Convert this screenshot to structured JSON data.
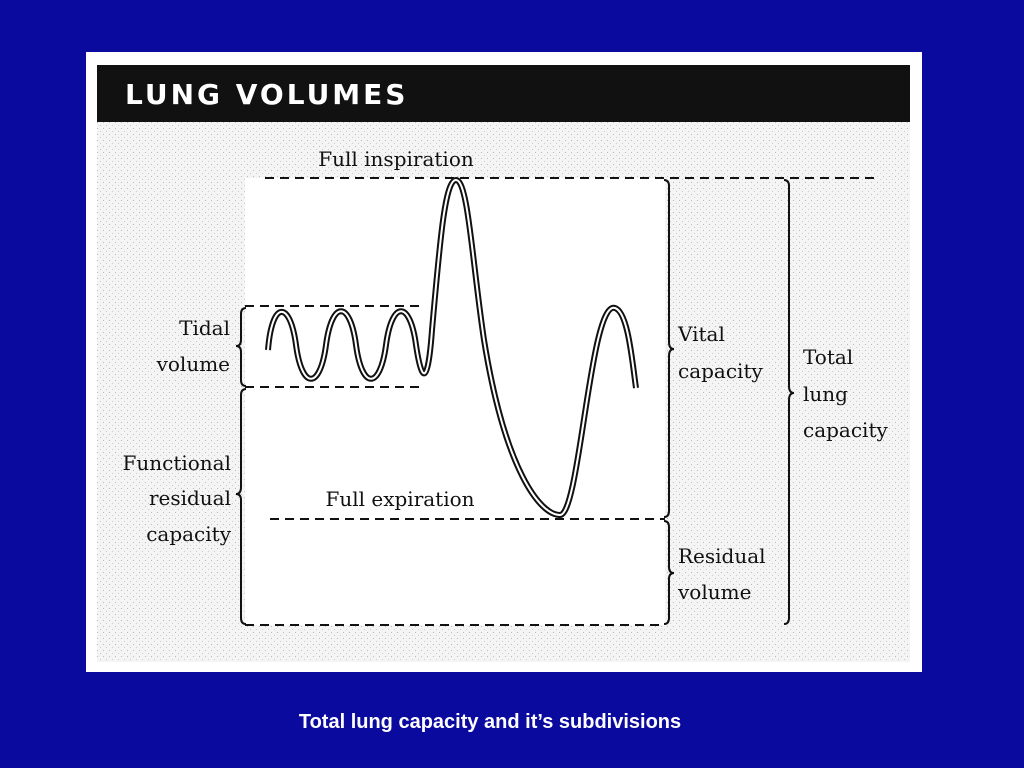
{
  "figure": {
    "title": "LUNG VOLUMES",
    "labels": {
      "full_inspiration": "Full inspiration",
      "full_expiration": "Full expiration",
      "tidal_volume": [
        "Tidal",
        "volume"
      ],
      "functional_residual_capacity": [
        "Functional",
        "residual",
        "capacity"
      ],
      "vital_capacity": [
        "Vital",
        "capacity"
      ],
      "residual_volume": [
        "Residual",
        "volume"
      ],
      "total_lung_capacity": [
        "Total",
        "lung",
        "capacity"
      ]
    }
  },
  "caption": "Total lung capacity and it’s subdivisions"
}
